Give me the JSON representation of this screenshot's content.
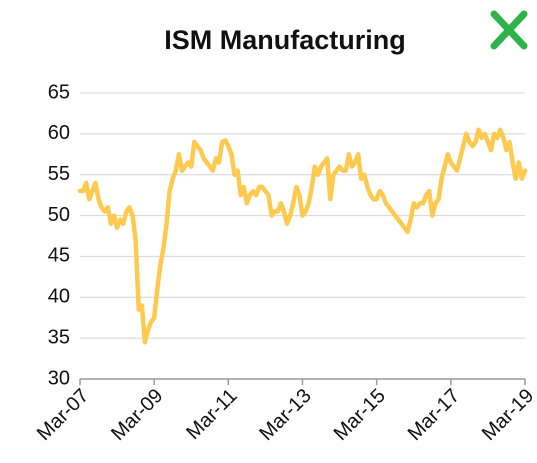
{
  "chart_data": {
    "type": "line",
    "title": "ISM Manufacturing",
    "categories": [
      "Mar-07",
      null,
      null,
      null,
      null,
      null,
      null,
      null,
      null,
      null,
      null,
      null,
      null,
      null,
      null,
      null,
      null,
      null,
      null,
      null,
      null,
      null,
      null,
      null,
      "Mar-09",
      null,
      null,
      null,
      null,
      null,
      null,
      null,
      null,
      null,
      null,
      null,
      null,
      null,
      null,
      null,
      null,
      null,
      null,
      null,
      null,
      null,
      null,
      null,
      "Mar-11",
      null,
      null,
      null,
      null,
      null,
      null,
      null,
      null,
      null,
      null,
      null,
      null,
      null,
      null,
      null,
      null,
      null,
      null,
      null,
      null,
      null,
      null,
      null,
      "Mar-13",
      null,
      null,
      null,
      null,
      null,
      null,
      null,
      null,
      null,
      null,
      null,
      null,
      null,
      null,
      null,
      null,
      null,
      null,
      null,
      null,
      null,
      null,
      null,
      "Mar-15",
      null,
      null,
      null,
      null,
      null,
      null,
      null,
      null,
      null,
      null,
      null,
      null,
      null,
      null,
      null,
      null,
      null,
      null,
      null,
      null,
      null,
      null,
      null,
      "Mar-17",
      null,
      null,
      null,
      null,
      null,
      null,
      null,
      null,
      null,
      null,
      null,
      null,
      null,
      null,
      null,
      null,
      null,
      null,
      null,
      null,
      null,
      null,
      null,
      "Mar-19"
    ],
    "values": [
      53,
      53,
      54,
      52,
      53,
      54,
      52,
      51,
      50.5,
      51,
      49,
      50,
      48.5,
      49.5,
      49,
      50.5,
      51,
      50,
      47,
      38.5,
      39,
      34.5,
      36,
      37,
      37.5,
      41,
      44,
      46,
      49,
      53,
      54.5,
      55.5,
      57.5,
      55.5,
      56,
      56.5,
      56,
      59,
      58.5,
      58,
      57,
      56.5,
      56,
      55.5,
      57,
      56.5,
      59,
      59.2,
      58.5,
      57.5,
      55,
      55.5,
      52.5,
      53.5,
      51.5,
      52.5,
      53,
      52.5,
      53.5,
      53.5,
      53,
      52.5,
      50,
      50.5,
      50.5,
      51.5,
      50.5,
      49,
      50,
      51.5,
      53.5,
      52.5,
      50,
      50.5,
      51.5,
      53.5,
      56,
      55,
      56,
      56.5,
      57,
      52,
      55,
      55.5,
      56,
      55.5,
      55.5,
      57.5,
      56,
      56.5,
      57.5,
      54.5,
      55,
      53.5,
      52.5,
      52,
      52,
      53,
      52.5,
      51.5,
      51,
      50.5,
      50,
      49.5,
      49,
      48.5,
      48,
      49.5,
      51.5,
      51,
      51.5,
      51.5,
      52.5,
      53,
      50,
      51.5,
      52,
      54.5,
      56,
      57.5,
      56.5,
      56,
      55.5,
      57,
      58.5,
      60,
      59,
      58.5,
      59,
      60.5,
      59.5,
      60,
      59,
      58,
      60,
      59.5,
      60.5,
      59.5,
      58,
      59,
      56.5,
      54.5,
      56.5,
      54.5,
      55.5
    ],
    "color": "#fdc94e",
    "ylim": [
      30,
      65
    ],
    "yticks": [
      30,
      35,
      40,
      45,
      50,
      55,
      60,
      65
    ],
    "grid": true
  }
}
